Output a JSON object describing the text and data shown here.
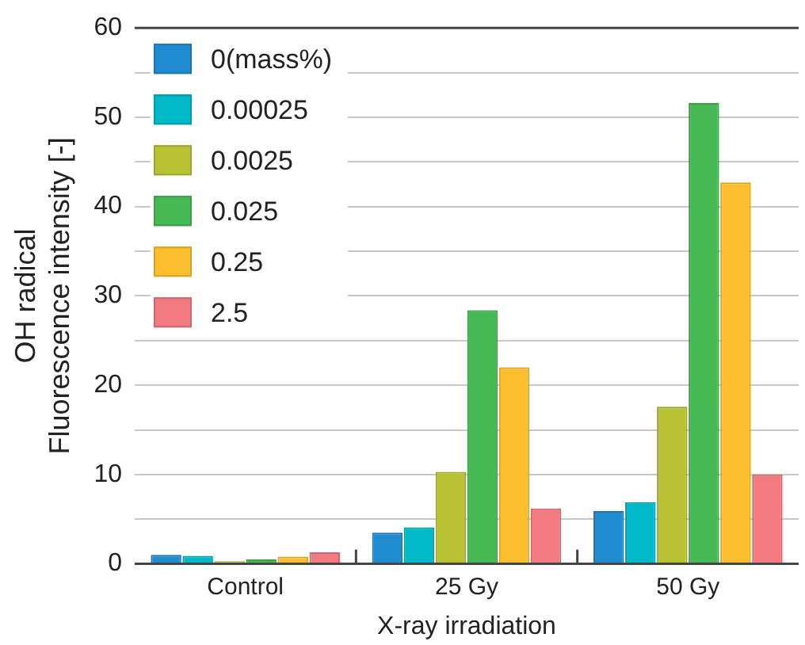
{
  "chart_data": {
    "type": "bar",
    "xlabel": "X-ray irradiation",
    "ylabel": "OH radical\nFluorescence intensity [-]",
    "categories": [
      "Control",
      "25 Gy",
      "50 Gy"
    ],
    "series": [
      {
        "name": "0(mass%)",
        "color": "#1f8ccf",
        "values": [
          1.0,
          3.5,
          5.9
        ]
      },
      {
        "name": "0.00025",
        "color": "#00b8c8",
        "values": [
          0.9,
          4.1,
          6.9
        ]
      },
      {
        "name": "0.0025",
        "color": "#b8c232",
        "values": [
          0.3,
          10.3,
          17.6
        ]
      },
      {
        "name": "0.025",
        "color": "#46b955",
        "values": [
          0.5,
          28.4,
          51.6
        ]
      },
      {
        "name": "0.25",
        "color": "#fdbf2d",
        "values": [
          0.8,
          22.0,
          42.7
        ]
      },
      {
        "name": "2.5",
        "color": "#f27a80",
        "values": [
          1.3,
          6.2,
          10.0
        ]
      }
    ],
    "ylim": [
      0,
      60
    ],
    "yticks": [
      0,
      {
        "value": 5,
        "label": null
      },
      10,
      {
        "value": 15,
        "label": null
      },
      20,
      {
        "value": 25,
        "label": null
      },
      30,
      {
        "value": 35,
        "label": null
      },
      40,
      {
        "value": 45,
        "label": null
      },
      50,
      {
        "value": 55,
        "label": null
      },
      60
    ],
    "grid": "y",
    "legend": "top left"
  }
}
